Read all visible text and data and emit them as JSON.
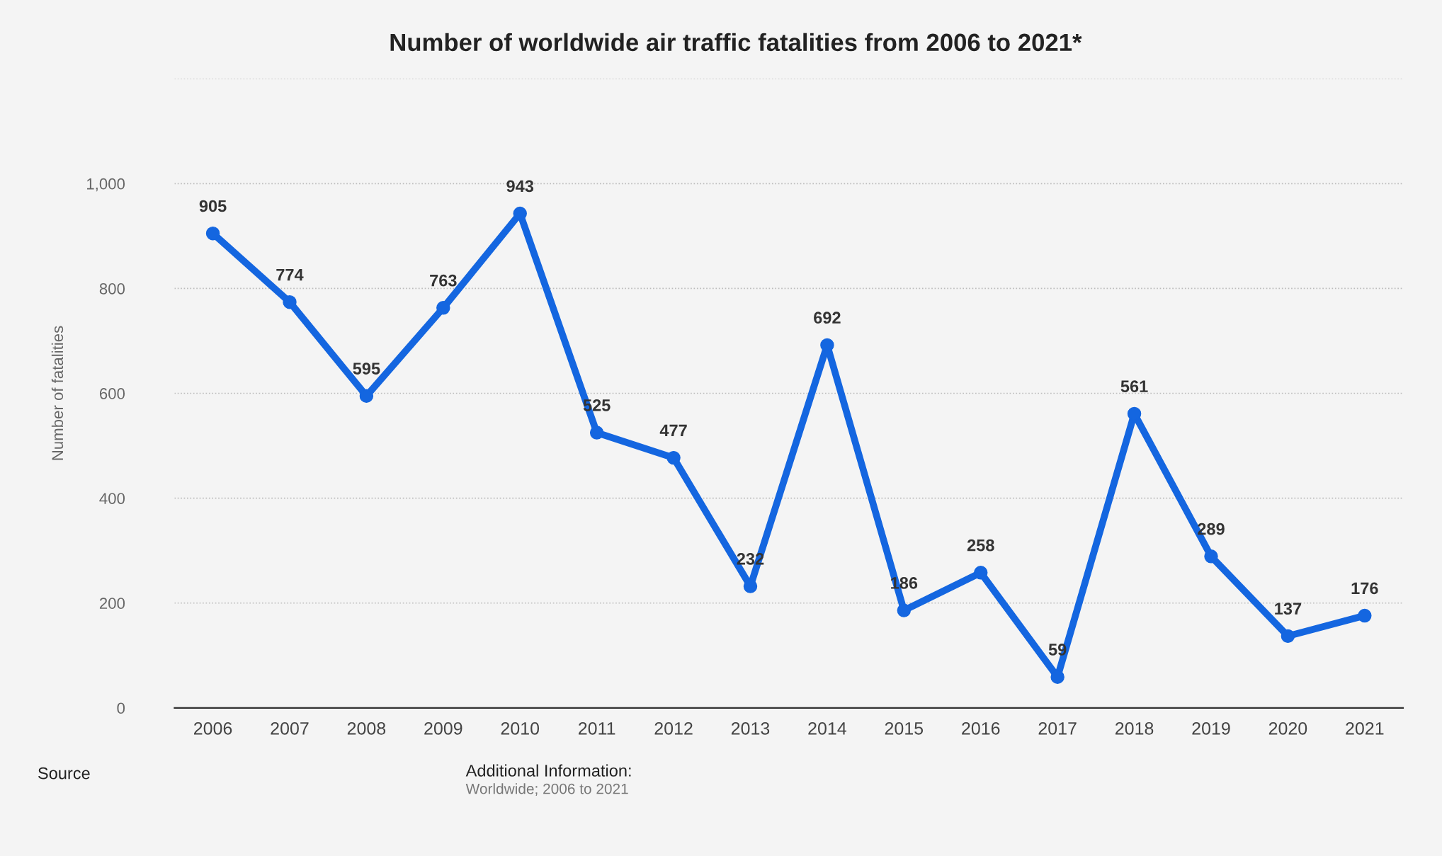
{
  "chart_data": {
    "type": "line",
    "title": "Number of worldwide air traffic fatalities from 2006 to 2021*",
    "ylabel": "Number of fatalities",
    "categories": [
      "2006",
      "2007",
      "2008",
      "2009",
      "2010",
      "2011",
      "2012",
      "2013",
      "2014",
      "2015",
      "2016",
      "2017",
      "2018",
      "2019",
      "2020",
      "2021"
    ],
    "series": [
      {
        "color": "#1466e0",
        "values": [
          905,
          774,
          595,
          763,
          943,
          525,
          477,
          232,
          692,
          186,
          258,
          59,
          561,
          289,
          137,
          176
        ]
      }
    ],
    "ylim": [
      0,
      1200
    ],
    "yticks": [
      0,
      200,
      400,
      600,
      800,
      {
        "value": 1000,
        "label": "1,000"
      },
      {
        "value": 1200,
        "label": null
      }
    ],
    "grid": "y",
    "data_labels": true,
    "marker": "circle",
    "line_style": "solid",
    "legend": false,
    "annotations": [
      "Source",
      "Additional Information:",
      "Worldwide; 2006 to 2021"
    ]
  }
}
